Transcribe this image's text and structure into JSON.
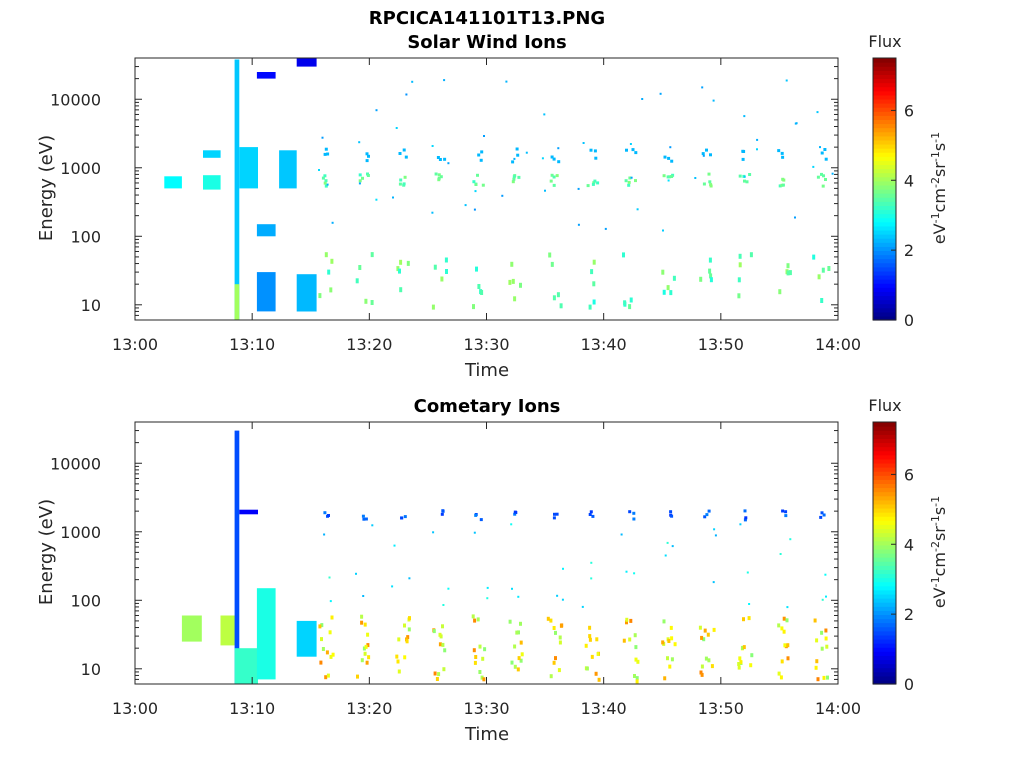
{
  "figure": {
    "title": "RPCICA141101T13.PNG"
  },
  "chart_data": [
    {
      "type": "heatmap",
      "title": "Solar Wind Ions",
      "xlabel": "Time",
      "ylabel": "Energy (eV)",
      "x_ticks": [
        "13:00",
        "13:10",
        "13:20",
        "13:30",
        "13:40",
        "13:50",
        "14:00"
      ],
      "xlim_minutes": [
        0,
        60
      ],
      "y_ticks": [
        "10",
        "100",
        "1000",
        "10000"
      ],
      "ylim": [
        6,
        40000
      ],
      "y_scale": "log",
      "colorbar": {
        "title": "Flux",
        "ticks": [
          "0",
          "2",
          "4",
          "6"
        ],
        "range": [
          0,
          7.5
        ],
        "colormap": "jet"
      },
      "features": [
        {
          "t_start": 2.5,
          "t_end": 4.0,
          "e_low": 500,
          "e_high": 750,
          "flux": 2.8
        },
        {
          "t_start": 5.8,
          "t_end": 7.3,
          "e_low": 480,
          "e_high": 780,
          "flux": 3.0
        },
        {
          "t_start": 5.8,
          "t_end": 7.3,
          "e_low": 1400,
          "e_high": 1800,
          "flux": 2.5
        },
        {
          "t_start": 8.5,
          "t_end": 8.9,
          "e_low": 6,
          "e_high": 38000,
          "flux": 2.4
        },
        {
          "t_start": 8.5,
          "t_end": 8.9,
          "e_low": 6,
          "e_high": 20,
          "flux": 4.0
        },
        {
          "t_start": 8.9,
          "t_end": 10.5,
          "e_low": 500,
          "e_high": 2000,
          "flux": 2.5
        },
        {
          "t_start": 10.4,
          "t_end": 12.0,
          "e_low": 8,
          "e_high": 30,
          "flux": 2.0
        },
        {
          "t_start": 10.4,
          "t_end": 12.0,
          "e_low": 100,
          "e_high": 150,
          "flux": 2.2
        },
        {
          "t_start": 10.4,
          "t_end": 12.0,
          "e_low": 20000,
          "e_high": 25000,
          "flux": 1.0
        },
        {
          "t_start": 12.3,
          "t_end": 13.8,
          "e_low": 500,
          "e_high": 1800,
          "flux": 2.4
        },
        {
          "t_start": 13.8,
          "t_end": 15.5,
          "e_low": 8,
          "e_high": 28,
          "flux": 2.3
        },
        {
          "t_start": 13.8,
          "t_end": 15.5,
          "e_low": 30000,
          "e_high": 40000,
          "flux": 0.8
        }
      ]
    },
    {
      "type": "heatmap",
      "title": "Cometary Ions",
      "xlabel": "Time",
      "ylabel": "Energy (eV)",
      "x_ticks": [
        "13:00",
        "13:10",
        "13:20",
        "13:30",
        "13:40",
        "13:50",
        "14:00"
      ],
      "xlim_minutes": [
        0,
        60
      ],
      "y_ticks": [
        "10",
        "100",
        "1000",
        "10000"
      ],
      "ylim": [
        6,
        40000
      ],
      "y_scale": "log",
      "colorbar": {
        "title": "Flux",
        "ticks": [
          "0",
          "2",
          "4",
          "6"
        ],
        "range": [
          0,
          7.5
        ],
        "colormap": "jet"
      },
      "features": [
        {
          "t_start": 4.0,
          "t_end": 5.7,
          "e_low": 25,
          "e_high": 60,
          "flux": 4.0
        },
        {
          "t_start": 7.3,
          "t_end": 8.6,
          "e_low": 22,
          "e_high": 60,
          "flux": 4.2
        },
        {
          "t_start": 8.5,
          "t_end": 8.9,
          "e_low": 6,
          "e_high": 30000,
          "flux": 1.5
        },
        {
          "t_start": 8.9,
          "t_end": 10.5,
          "e_low": 1800,
          "e_high": 2100,
          "flux": 0.9
        },
        {
          "t_start": 8.5,
          "t_end": 10.5,
          "e_low": 6,
          "e_high": 20,
          "flux": 3.2
        },
        {
          "t_start": 10.4,
          "t_end": 12.0,
          "e_low": 7,
          "e_high": 150,
          "flux": 3.0
        },
        {
          "t_start": 13.8,
          "t_end": 15.5,
          "e_low": 15,
          "e_high": 50,
          "flux": 2.5
        }
      ]
    }
  ]
}
